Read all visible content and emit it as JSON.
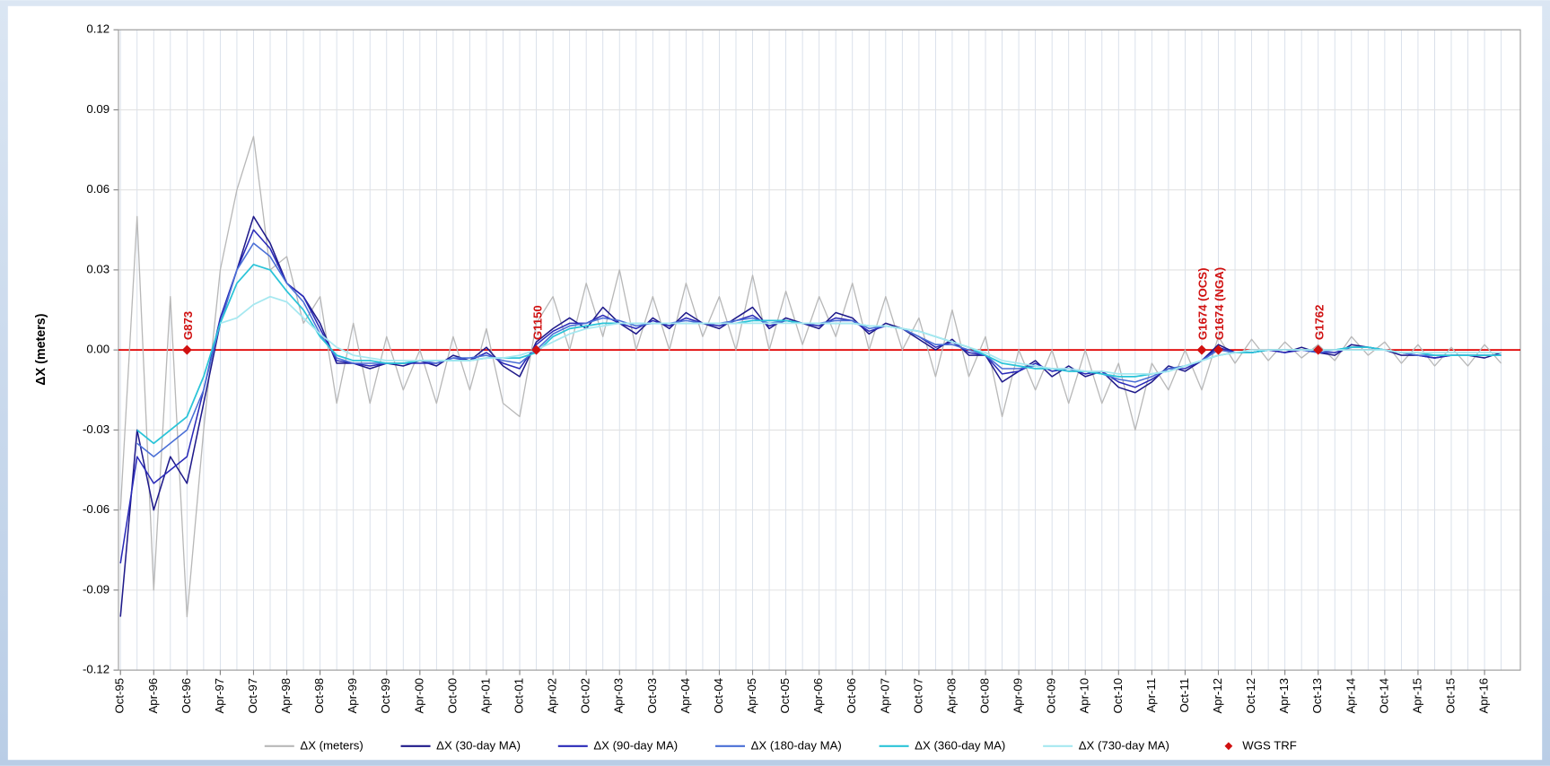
{
  "chart_data": {
    "type": "line",
    "y_label": "ΔX (meters)",
    "categories": [
      "Oct-95",
      null,
      "Apr-96",
      null,
      "Oct-96",
      null,
      "Apr-97",
      null,
      "Oct-97",
      null,
      "Apr-98",
      null,
      "Oct-98",
      null,
      "Apr-99",
      null,
      "Oct-99",
      null,
      "Apr-00",
      null,
      "Oct-00",
      null,
      "Apr-01",
      null,
      "Oct-01",
      null,
      "Apr-02",
      null,
      "Oct-02",
      null,
      "Apr-03",
      null,
      "Oct-03",
      null,
      "Apr-04",
      null,
      "Oct-04",
      null,
      "Apr-05",
      null,
      "Oct-05",
      null,
      "Apr-06",
      null,
      "Oct-06",
      null,
      "Apr-07",
      null,
      "Oct-07",
      null,
      "Apr-08",
      null,
      "Oct-08",
      null,
      "Apr-09",
      null,
      "Oct-09",
      null,
      "Apr-10",
      null,
      "Oct-10",
      null,
      "Apr-11",
      null,
      "Oct-11",
      null,
      "Apr-12",
      null,
      "Oct-12",
      null,
      "Apr-13",
      null,
      "Oct-13",
      null,
      "Apr-14",
      null,
      "Oct-14",
      null,
      "Apr-15",
      null,
      "Oct-15",
      null,
      "Apr-16",
      null
    ],
    "series": [
      {
        "name": "ΔX (meters)",
        "color": "#b8b8b8",
        "width": 1.2,
        "values": [
          -0.06,
          0.05,
          -0.09,
          0.02,
          -0.1,
          -0.03,
          0.03,
          0.06,
          0.08,
          0.03,
          0.035,
          0.01,
          0.02,
          -0.02,
          0.01,
          -0.02,
          0.005,
          -0.015,
          0.0,
          -0.02,
          0.005,
          -0.015,
          0.008,
          -0.02,
          -0.025,
          0.01,
          0.02,
          0.0,
          0.025,
          0.005,
          0.03,
          0.0,
          0.02,
          0.0,
          0.025,
          0.005,
          0.02,
          0.0,
          0.028,
          0.0,
          0.022,
          0.002,
          0.02,
          0.005,
          0.025,
          0.0,
          0.02,
          0.0,
          0.012,
          -0.01,
          0.015,
          -0.01,
          0.005,
          -0.025,
          0.0,
          -0.015,
          0.0,
          -0.02,
          0.0,
          -0.02,
          -0.005,
          -0.03,
          -0.005,
          -0.015,
          0.0,
          -0.015,
          0.005,
          -0.005,
          0.004,
          -0.004,
          0.003,
          -0.003,
          0.002,
          -0.004,
          0.005,
          -0.002,
          0.003,
          -0.005,
          0.002,
          -0.006,
          0.001,
          -0.006,
          0.002,
          -0.005
        ]
      },
      {
        "name": "ΔX (30-day MA)",
        "color": "#1f1a8a",
        "width": 1.4,
        "values": [
          -0.1,
          -0.03,
          -0.06,
          -0.04,
          -0.05,
          -0.02,
          0.01,
          0.03,
          0.05,
          0.04,
          0.025,
          0.02,
          0.01,
          -0.005,
          -0.005,
          -0.007,
          -0.005,
          -0.006,
          -0.004,
          -0.006,
          -0.002,
          -0.004,
          0.001,
          -0.006,
          -0.01,
          0.003,
          0.008,
          0.012,
          0.008,
          0.016,
          0.01,
          0.006,
          0.012,
          0.008,
          0.014,
          0.01,
          0.008,
          0.012,
          0.016,
          0.008,
          0.012,
          0.01,
          0.008,
          0.014,
          0.012,
          0.006,
          0.01,
          0.008,
          0.004,
          0.0,
          0.004,
          -0.002,
          -0.002,
          -0.012,
          -0.008,
          -0.004,
          -0.01,
          -0.006,
          -0.01,
          -0.008,
          -0.014,
          -0.016,
          -0.012,
          -0.006,
          -0.008,
          -0.004,
          0.002,
          -0.001,
          -0.001,
          0.0,
          -0.001,
          0.001,
          -0.001,
          -0.002,
          0.002,
          0.001,
          0.0,
          -0.002,
          -0.002,
          -0.003,
          -0.002,
          -0.002,
          -0.003,
          -0.001
        ]
      },
      {
        "name": "ΔX (90-day MA)",
        "color": "#2a2ab8",
        "width": 1.4,
        "values": [
          -0.08,
          -0.04,
          -0.05,
          -0.045,
          -0.04,
          -0.015,
          0.012,
          0.03,
          0.045,
          0.038,
          0.025,
          0.02,
          0.008,
          -0.004,
          -0.005,
          -0.006,
          -0.005,
          -0.005,
          -0.005,
          -0.005,
          -0.003,
          -0.004,
          -0.001,
          -0.005,
          -0.007,
          0.002,
          0.007,
          0.01,
          0.01,
          0.013,
          0.01,
          0.008,
          0.011,
          0.009,
          0.012,
          0.01,
          0.009,
          0.011,
          0.013,
          0.009,
          0.011,
          0.01,
          0.009,
          0.012,
          0.011,
          0.007,
          0.009,
          0.008,
          0.005,
          0.001,
          0.003,
          -0.001,
          -0.002,
          -0.009,
          -0.008,
          -0.005,
          -0.008,
          -0.007,
          -0.009,
          -0.008,
          -0.012,
          -0.014,
          -0.011,
          -0.007,
          -0.007,
          -0.004,
          0.001,
          -0.001,
          -0.001,
          0.0,
          -0.001,
          0.0,
          -0.001,
          -0.001,
          0.001,
          0.001,
          0.0,
          -0.001,
          -0.002,
          -0.003,
          -0.002,
          -0.002,
          -0.002,
          -0.002
        ]
      },
      {
        "name": "ΔX (180-day MA)",
        "color": "#4a6fd6",
        "width": 1.4,
        "values": [
          null,
          -0.035,
          -0.04,
          -0.035,
          -0.03,
          -0.015,
          0.01,
          0.03,
          0.04,
          0.035,
          0.025,
          0.018,
          0.006,
          -0.003,
          -0.005,
          -0.005,
          -0.005,
          -0.005,
          -0.004,
          -0.005,
          -0.003,
          -0.003,
          -0.002,
          -0.004,
          -0.005,
          0.0,
          0.006,
          0.009,
          0.01,
          0.012,
          0.011,
          0.009,
          0.01,
          0.01,
          0.011,
          0.01,
          0.01,
          0.011,
          0.012,
          0.01,
          0.011,
          0.01,
          0.01,
          0.011,
          0.011,
          0.008,
          0.009,
          0.008,
          0.005,
          0.002,
          0.002,
          0.0,
          -0.002,
          -0.007,
          -0.007,
          -0.006,
          -0.007,
          -0.007,
          -0.008,
          -0.009,
          -0.011,
          -0.012,
          -0.01,
          -0.007,
          -0.006,
          -0.004,
          0.0,
          -0.001,
          -0.001,
          0.0,
          0.0,
          0.0,
          -0.001,
          0.0,
          0.001,
          0.001,
          0.0,
          -0.001,
          -0.002,
          -0.002,
          -0.002,
          -0.002,
          -0.002,
          -0.002
        ]
      },
      {
        "name": "ΔX (360-day MA)",
        "color": "#2bc4d8",
        "width": 1.6,
        "values": [
          null,
          -0.03,
          -0.035,
          -0.03,
          -0.025,
          -0.01,
          0.01,
          0.025,
          0.032,
          0.03,
          0.022,
          0.015,
          0.005,
          -0.002,
          -0.004,
          -0.004,
          -0.005,
          -0.005,
          -0.004,
          -0.004,
          -0.004,
          -0.004,
          -0.003,
          -0.003,
          -0.003,
          -0.001,
          0.005,
          0.008,
          0.009,
          0.01,
          0.01,
          0.01,
          0.01,
          0.01,
          0.01,
          0.01,
          0.01,
          0.01,
          0.011,
          0.011,
          0.011,
          0.01,
          0.01,
          0.01,
          0.01,
          0.009,
          0.009,
          0.008,
          0.007,
          0.005,
          0.003,
          0.001,
          -0.002,
          -0.005,
          -0.006,
          -0.007,
          -0.007,
          -0.008,
          -0.008,
          -0.009,
          -0.01,
          -0.01,
          -0.009,
          -0.008,
          -0.006,
          -0.004,
          -0.002,
          -0.001,
          -0.001,
          0.0,
          0.0,
          0.0,
          0.0,
          0.0,
          0.001,
          0.001,
          0.0,
          -0.001,
          -0.001,
          -0.002,
          -0.002,
          -0.002,
          -0.002,
          -0.002
        ]
      },
      {
        "name": "ΔX (730-day MA)",
        "color": "#a6e8f0",
        "width": 1.6,
        "values": [
          null,
          null,
          null,
          null,
          null,
          null,
          0.01,
          0.012,
          0.017,
          0.02,
          0.018,
          0.012,
          0.006,
          0.001,
          -0.002,
          -0.003,
          -0.004,
          -0.004,
          -0.004,
          -0.004,
          -0.004,
          -0.004,
          -0.003,
          -0.003,
          -0.002,
          0.0,
          0.003,
          0.006,
          0.008,
          0.009,
          0.01,
          0.01,
          0.01,
          0.01,
          0.01,
          0.01,
          0.01,
          0.01,
          0.01,
          0.01,
          0.01,
          0.01,
          0.01,
          0.01,
          0.01,
          0.009,
          0.009,
          0.008,
          0.007,
          0.005,
          0.003,
          0.001,
          -0.001,
          -0.004,
          -0.005,
          -0.006,
          -0.007,
          -0.007,
          -0.008,
          -0.008,
          -0.009,
          -0.009,
          -0.009,
          -0.008,
          -0.006,
          -0.004,
          -0.002,
          -0.001,
          0.0,
          0.0,
          0.0,
          0.0,
          0.0,
          0.0,
          0.0,
          0.0,
          0.0,
          -0.001,
          -0.001,
          -0.001,
          -0.001,
          -0.001,
          -0.001,
          -0.001
        ]
      },
      {
        "name": "WGS TRF",
        "color": "#d01010",
        "marker": "diamond",
        "values": [
          null,
          null,
          null,
          null,
          0,
          null,
          null,
          null,
          null,
          null,
          null,
          null,
          null,
          null,
          null,
          null,
          null,
          null,
          null,
          null,
          null,
          null,
          null,
          null,
          null,
          0,
          null,
          null,
          null,
          null,
          null,
          null,
          null,
          null,
          null,
          null,
          null,
          null,
          null,
          null,
          null,
          null,
          null,
          null,
          null,
          null,
          null,
          null,
          null,
          null,
          null,
          null,
          null,
          null,
          null,
          null,
          null,
          null,
          null,
          null,
          null,
          null,
          null,
          null,
          null,
          0,
          0,
          null,
          null,
          null,
          null,
          null,
          0,
          null,
          null,
          null,
          null,
          null,
          null,
          null,
          null,
          null,
          null,
          null
        ],
        "point_labels": [
          null,
          null,
          null,
          null,
          "G873",
          null,
          null,
          null,
          null,
          null,
          null,
          null,
          null,
          null,
          null,
          null,
          null,
          null,
          null,
          null,
          null,
          null,
          null,
          null,
          null,
          "G1150",
          null,
          null,
          null,
          null,
          null,
          null,
          null,
          null,
          null,
          null,
          null,
          null,
          null,
          null,
          null,
          null,
          null,
          null,
          null,
          null,
          null,
          null,
          null,
          null,
          null,
          null,
          null,
          null,
          null,
          null,
          null,
          null,
          null,
          null,
          null,
          null,
          null,
          null,
          null,
          "G1674 (OCS)",
          "G1674 (NGA)",
          null,
          null,
          null,
          null,
          null,
          "G1762",
          null,
          null,
          null,
          null,
          null,
          null,
          null,
          null,
          null,
          null,
          null
        ]
      }
    ],
    "ylim": [
      -0.12,
      0.12
    ],
    "yticks": [
      -0.12,
      -0.09,
      -0.06,
      -0.03,
      {
        "value": 0,
        "label": "0.00"
      },
      0.03,
      0.06,
      0.09,
      0.12
    ],
    "grid": true,
    "zero_line_color": "#e00000",
    "legend": "bottom"
  }
}
